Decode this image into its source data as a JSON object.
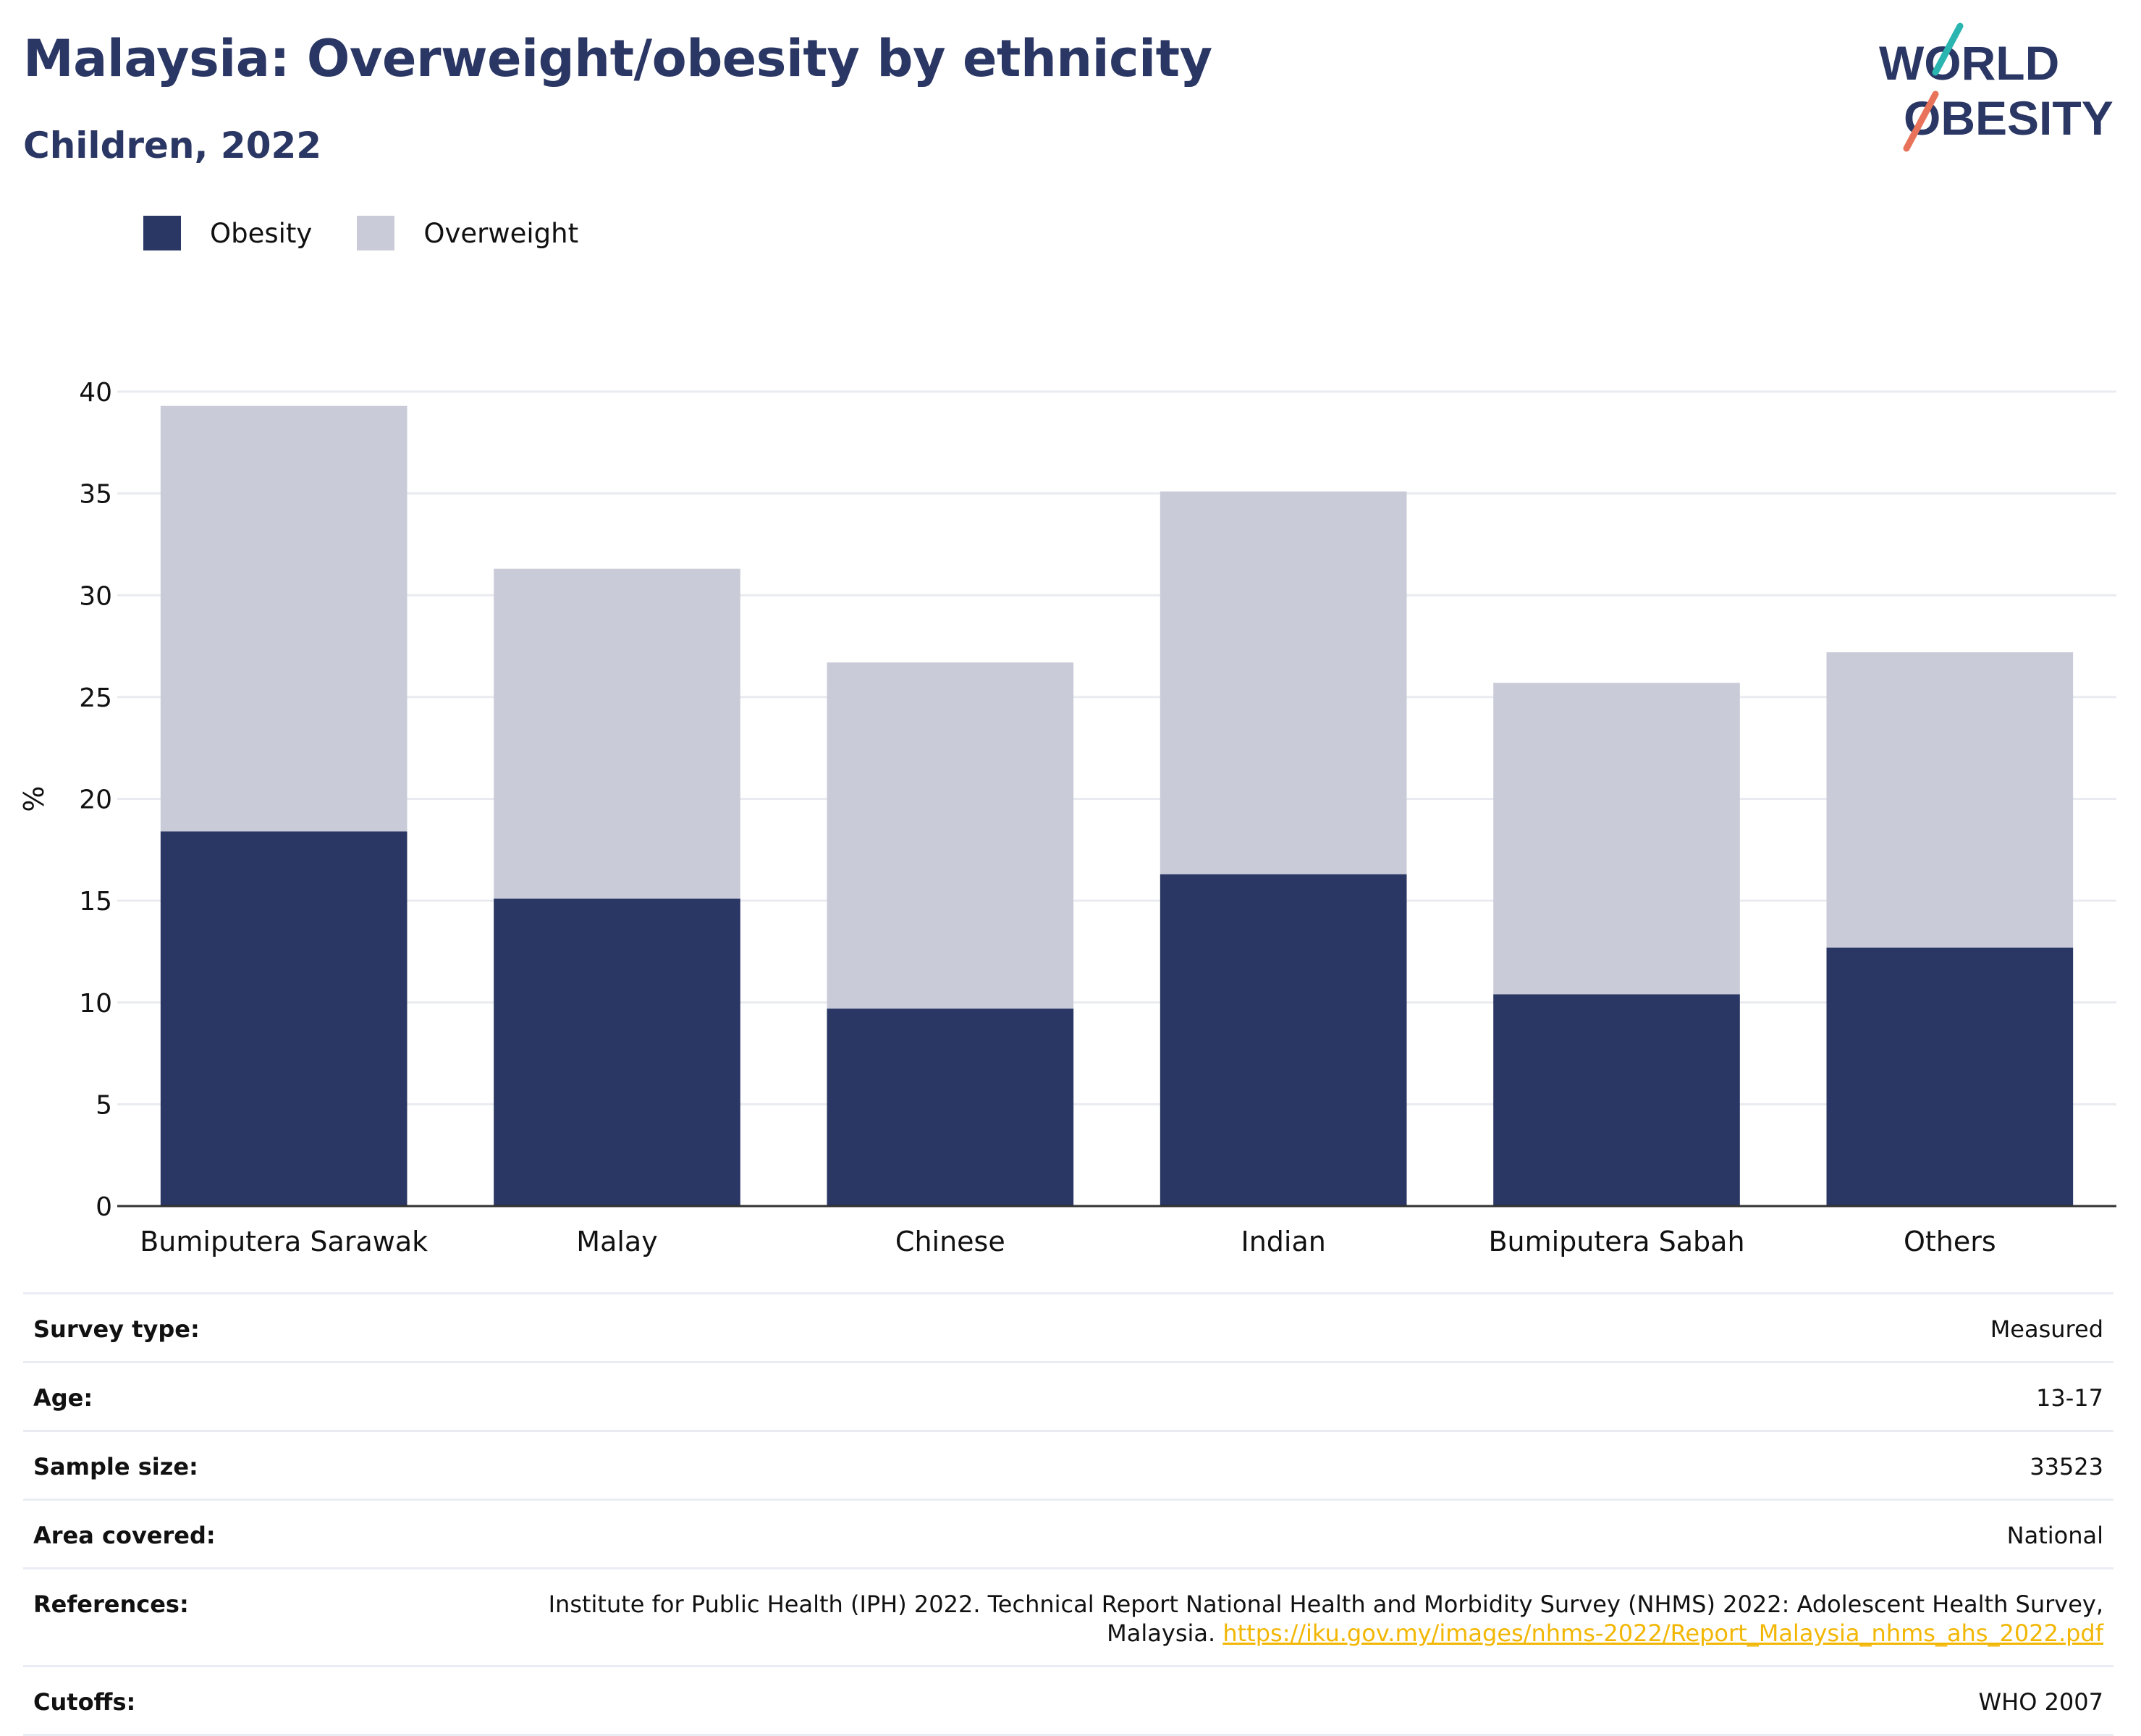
{
  "header": {
    "title": "Malaysia: Overweight/obesity by ethnicity",
    "subtitle": "Children, 2022"
  },
  "logo": {
    "line1": "WORLD",
    "line2": "OBESITY"
  },
  "colors": {
    "obesity": "#2a3663",
    "overweight": "#c9ccd8",
    "title": "#2a3663",
    "link": "#f2b705",
    "logo_teal": "#2ab5b0",
    "logo_coral": "#e8735a"
  },
  "chart_data": {
    "type": "bar",
    "stacked": true,
    "categories": [
      "Bumiputera Sarawak",
      "Malay",
      "Chinese",
      "Indian",
      "Bumiputera Sabah",
      "Others"
    ],
    "series": [
      {
        "name": "Obesity",
        "values": [
          18.4,
          15.1,
          9.7,
          16.3,
          10.4,
          12.7
        ]
      },
      {
        "name": "Overweight",
        "values": [
          20.9,
          16.2,
          17.0,
          18.8,
          15.3,
          14.5
        ]
      }
    ],
    "ylabel": "%",
    "ylim": [
      0,
      40
    ],
    "yticks": [
      0,
      5,
      10,
      15,
      20,
      25,
      30,
      35,
      40
    ],
    "grid": true,
    "legend_position": "top-left"
  },
  "info": {
    "survey_type": {
      "label": "Survey type:",
      "value": "Measured"
    },
    "age": {
      "label": "Age:",
      "value": "13-17"
    },
    "sample_size": {
      "label": "Sample size:",
      "value": "33523"
    },
    "area_covered": {
      "label": "Area covered:",
      "value": "National"
    },
    "references": {
      "label": "References:",
      "line1": "Institute for Public Health (IPH) 2022. Technical Report National Health and Morbidity Survey (NHMS) 2022: Adolescent Health Survey,",
      "line2": "Malaysia.",
      "link": "https://iku.gov.my/images/nhms-2022/Report_Malaysia_nhms_ahs_2022.pdf"
    },
    "cutoffs": {
      "label": "Cutoffs:",
      "value": "WHO 2007"
    }
  }
}
